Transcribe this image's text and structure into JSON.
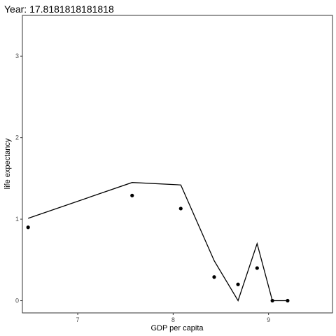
{
  "chart_data": {
    "type": "scatter",
    "title": "Year: 17.8181818181818",
    "xlabel": "GDP per capita",
    "ylabel": "life expectancy",
    "xlim": [
      6.42,
      9.67
    ],
    "ylim": [
      -0.15,
      3.5
    ],
    "x_ticks": [
      7,
      8,
      9
    ],
    "y_ticks": [
      0,
      1,
      2,
      3
    ],
    "grid": false,
    "points": {
      "x": [
        6.48,
        7.57,
        8.08,
        8.43,
        8.68,
        8.88,
        9.04,
        9.2
      ],
      "y": [
        0.9,
        1.29,
        1.13,
        0.29,
        0.2,
        0.4,
        0.0,
        0.0
      ]
    },
    "line": {
      "x": [
        6.48,
        7.57,
        8.08,
        8.43,
        8.68,
        8.88,
        9.04,
        9.2
      ],
      "y": [
        1.01,
        1.45,
        1.42,
        0.49,
        0.0,
        0.7,
        0.0,
        0.0
      ]
    },
    "colors": {
      "points": "#000000",
      "line": "#000000",
      "panel_border": "#333333"
    }
  }
}
